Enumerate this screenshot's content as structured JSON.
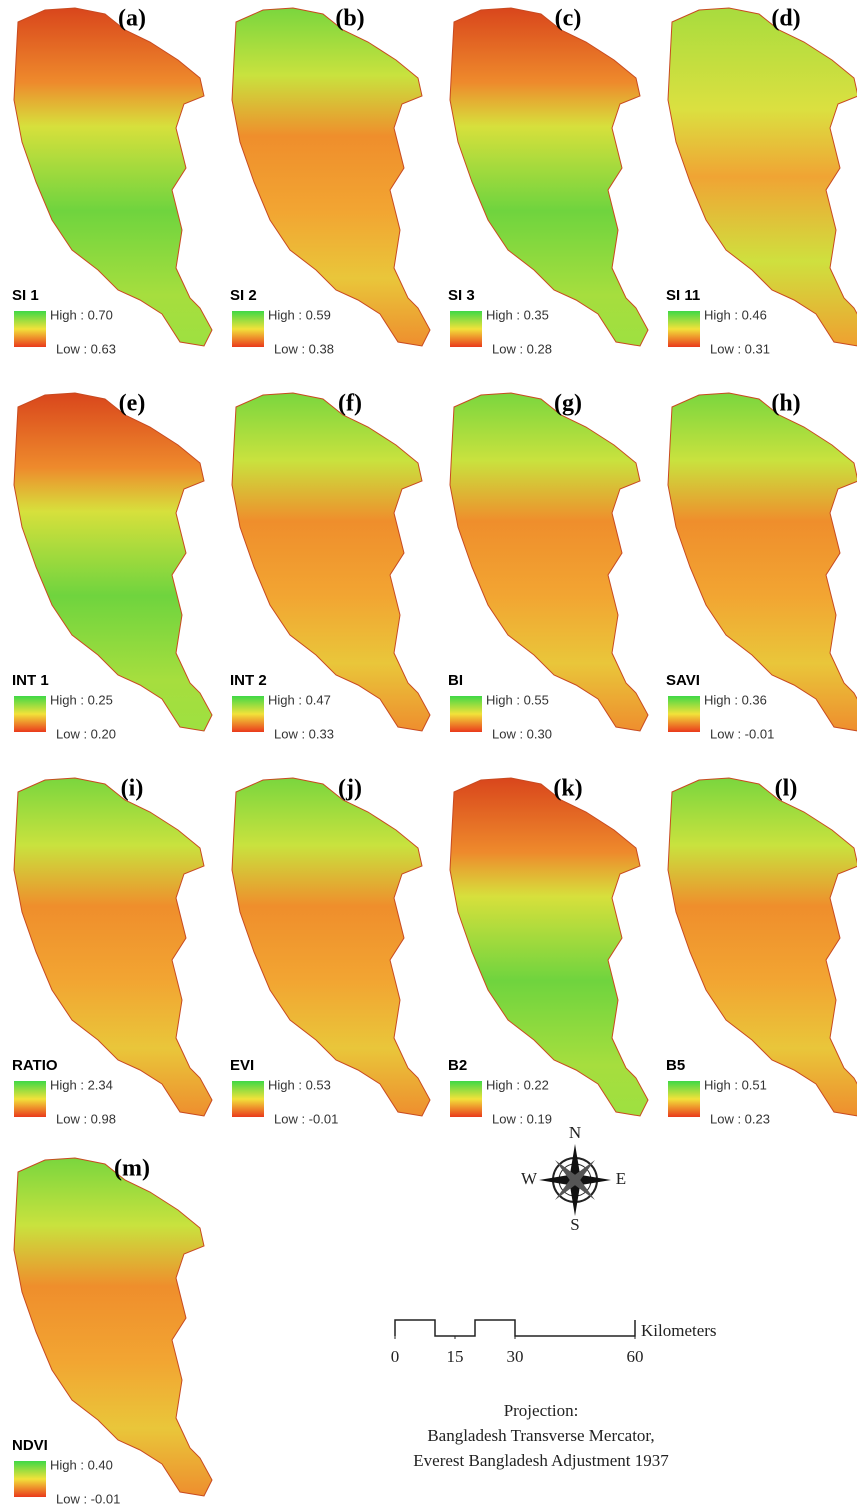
{
  "panels": [
    {
      "letter": "(a)",
      "name": "SI 1",
      "high": "High : 0.70",
      "low": "Low : 0.63"
    },
    {
      "letter": "(b)",
      "name": "SI 2",
      "high": "High : 0.59",
      "low": "Low : 0.38"
    },
    {
      "letter": "(c)",
      "name": "SI 3",
      "high": "High : 0.35",
      "low": "Low : 0.28"
    },
    {
      "letter": "(d)",
      "name": "SI 11",
      "high": "High : 0.46",
      "low": "Low : 0.31"
    },
    {
      "letter": "(e)",
      "name": "INT 1",
      "high": "High : 0.25",
      "low": "Low : 0.20"
    },
    {
      "letter": "(f)",
      "name": "INT 2",
      "high": "High : 0.47",
      "low": "Low : 0.33"
    },
    {
      "letter": "(g)",
      "name": "BI",
      "high": "High : 0.55",
      "low": "Low : 0.30"
    },
    {
      "letter": "(h)",
      "name": "SAVI",
      "high": "High : 0.36",
      "low": "Low : -0.01"
    },
    {
      "letter": "(i)",
      "name": "RATIO",
      "high": "High : 2.34",
      "low": "Low : 0.98"
    },
    {
      "letter": "(j)",
      "name": "EVI",
      "high": "High : 0.53",
      "low": "Low : -0.01"
    },
    {
      "letter": "(k)",
      "name": "B2",
      "high": "High : 0.22",
      "low": "Low : 0.19"
    },
    {
      "letter": "(l)",
      "name": "B5",
      "high": "High : 0.51",
      "low": "Low : 0.23"
    },
    {
      "letter": "(m)",
      "name": "NDVI",
      "high": "High : 0.40",
      "low": "Low : -0.01"
    }
  ],
  "compass": {
    "n": "N",
    "e": "E",
    "s": "S",
    "w": "W"
  },
  "scale_bar": {
    "ticks": [
      0,
      15,
      30,
      60
    ],
    "unit": "Kilometers"
  },
  "projection": {
    "title": "Projection:",
    "line1": "Bangladesh Transverse Mercator,",
    "line2": "Everest Bangladesh Adjustment 1937"
  }
}
